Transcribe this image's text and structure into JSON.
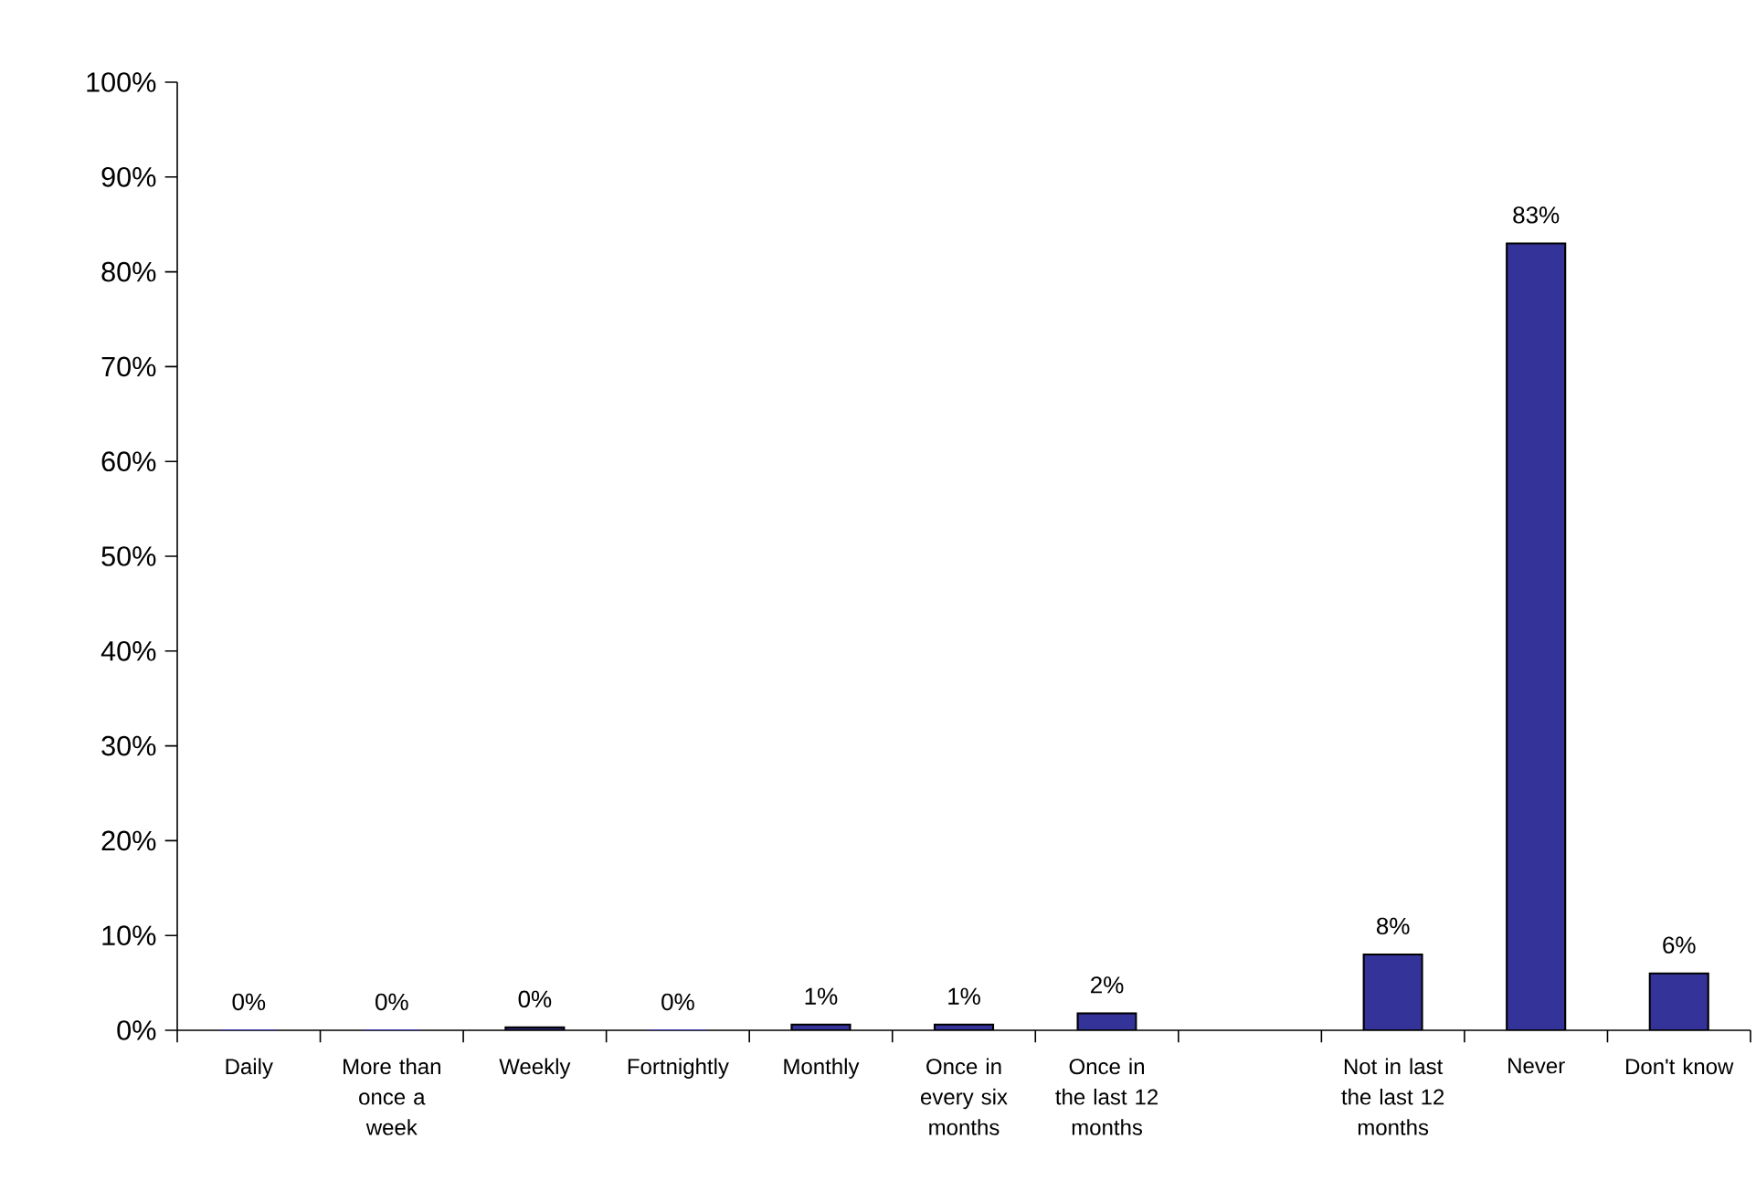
{
  "chart_data": {
    "type": "bar",
    "categories": [
      "Daily",
      "More than once a week",
      "Weekly",
      "Fortnightly",
      "Monthly",
      "Once in every six months",
      "Once in the last 12 months",
      null,
      "Not in last the last 12 months",
      "Never",
      "Don't know"
    ],
    "values": [
      0,
      0,
      0.3,
      0,
      0.6,
      0.6,
      1.8,
      null,
      8,
      83,
      6
    ],
    "value_labels": [
      "0%",
      "0%",
      "0%",
      "0%",
      "1%",
      "1%",
      "2%",
      null,
      "8%",
      "83%",
      "6%"
    ],
    "color": "#333399",
    "ylim": [
      0,
      100
    ],
    "yticks": [
      {
        "value": 0,
        "label": "0%"
      },
      {
        "value": 10,
        "label": "10%"
      },
      {
        "value": 20,
        "label": "20%"
      },
      {
        "value": 30,
        "label": "30%"
      },
      {
        "value": 40,
        "label": "40%"
      },
      {
        "value": 50,
        "label": "50%"
      },
      {
        "value": 60,
        "label": "60%"
      },
      {
        "value": 70,
        "label": "70%"
      },
      {
        "value": 80,
        "label": "80%"
      },
      {
        "value": 90,
        "label": "90%"
      },
      {
        "value": 100,
        "label": "100%"
      }
    ],
    "grid": false
  }
}
